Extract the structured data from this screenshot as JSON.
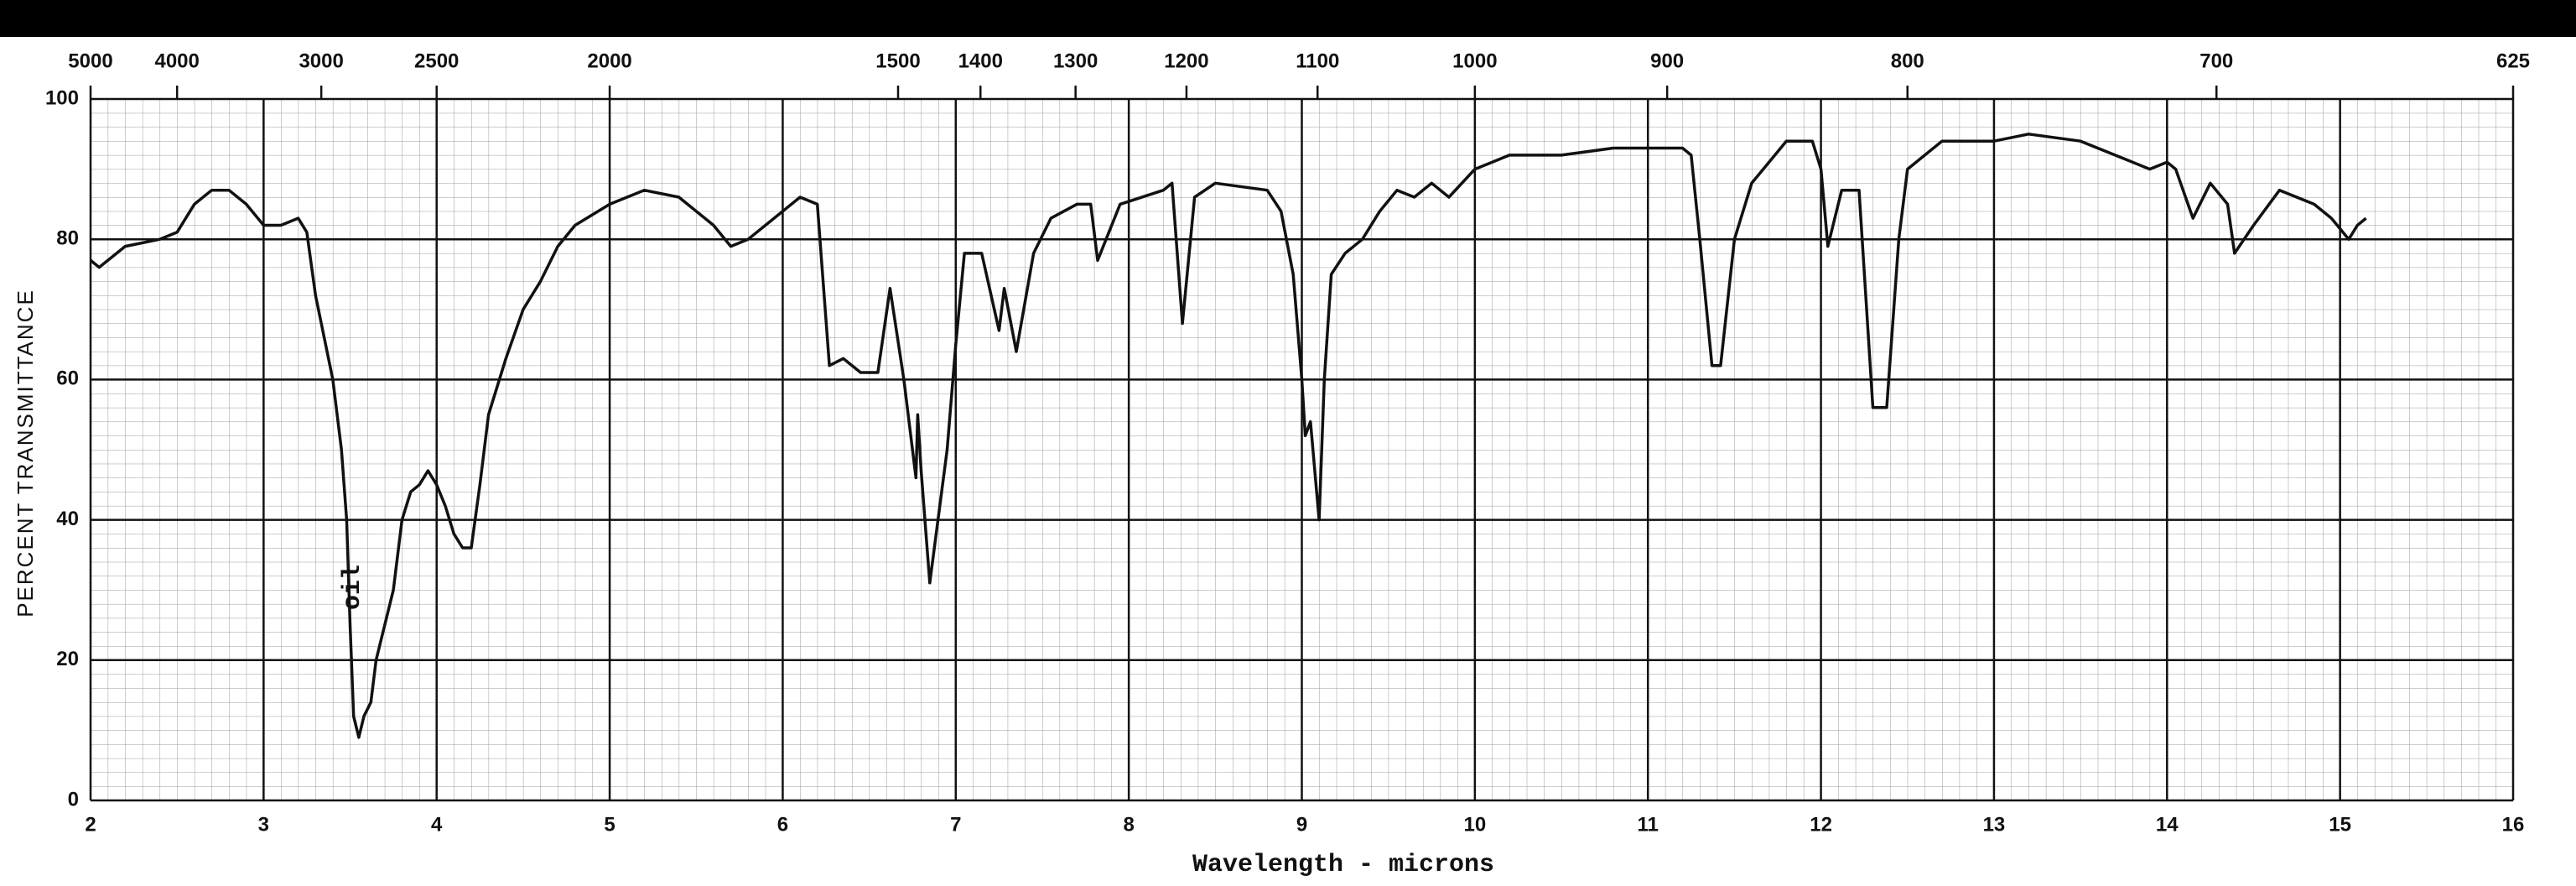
{
  "chart_data": {
    "type": "line",
    "ylabel": "PERCENT TRANSMITTANCE",
    "xlabel": "Wavelength - microns",
    "annotation": "oil",
    "xlim": [
      2,
      16
    ],
    "ylim": [
      0,
      100
    ],
    "xticks": [
      2,
      3,
      4,
      5,
      6,
      7,
      8,
      9,
      10,
      11,
      12,
      13,
      14,
      15,
      16
    ],
    "yticks": [
      0,
      20,
      40,
      60,
      80,
      100
    ],
    "x2ticks": [
      5000,
      4000,
      3000,
      2500,
      2000,
      1500,
      1400,
      1300,
      1200,
      1100,
      1000,
      900,
      800,
      700,
      625
    ],
    "grid": true,
    "series": [
      {
        "color": "#111111",
        "x": [
          2.0,
          2.05,
          2.2,
          2.4,
          2.5,
          2.6,
          2.7,
          2.8,
          2.9,
          3.0,
          3.1,
          3.2,
          3.25,
          3.3,
          3.4,
          3.45,
          3.48,
          3.5,
          3.52,
          3.55,
          3.58,
          3.62,
          3.65,
          3.7,
          3.75,
          3.8,
          3.85,
          3.9,
          3.95,
          4.0,
          4.05,
          4.1,
          4.15,
          4.2,
          4.25,
          4.3,
          4.4,
          4.5,
          4.6,
          4.7,
          4.8,
          5.0,
          5.2,
          5.4,
          5.6,
          5.7,
          5.8,
          6.0,
          6.1,
          6.2,
          6.27,
          6.35,
          6.45,
          6.55,
          6.62,
          6.7,
          6.77,
          6.78,
          6.8,
          6.85,
          6.95,
          7.0,
          7.05,
          7.15,
          7.25,
          7.28,
          7.35,
          7.45,
          7.55,
          7.7,
          7.78,
          7.82,
          7.95,
          8.2,
          8.25,
          8.31,
          8.38,
          8.5,
          8.8,
          8.88,
          8.95,
          9.0,
          9.02,
          9.05,
          9.1,
          9.13,
          9.17,
          9.25,
          9.35,
          9.45,
          9.55,
          9.65,
          9.75,
          9.85,
          10.0,
          10.2,
          10.5,
          10.8,
          11.2,
          11.25,
          11.3,
          11.37,
          11.42,
          11.5,
          11.6,
          11.7,
          11.8,
          11.95,
          12.0,
          12.04,
          12.12,
          12.22,
          12.3,
          12.38,
          12.45,
          12.5,
          12.7,
          13.0,
          13.2,
          13.5,
          13.7,
          13.9,
          14.0,
          14.05,
          14.15,
          14.25,
          14.35,
          14.39,
          14.5,
          14.65,
          14.85,
          14.95,
          15.05,
          15.1,
          15.15
        ],
        "values": [
          77,
          76,
          79,
          80,
          81,
          85,
          87,
          87,
          85,
          82,
          82,
          83,
          81,
          72,
          60,
          50,
          40,
          25,
          12,
          9,
          12,
          14,
          20,
          25,
          30,
          40,
          44,
          45,
          47,
          45,
          42,
          38,
          36,
          36,
          45,
          55,
          63,
          70,
          74,
          79,
          82,
          85,
          87,
          86,
          82,
          79,
          80,
          84,
          86,
          85,
          62,
          63,
          61,
          61,
          73,
          60,
          46,
          55,
          47,
          31,
          50,
          65,
          78,
          78,
          67,
          73,
          64,
          78,
          83,
          85,
          85,
          77,
          85,
          87,
          88,
          68,
          86,
          88,
          87,
          84,
          75,
          60,
          52,
          54,
          40,
          60,
          75,
          78,
          80,
          84,
          87,
          86,
          88,
          86,
          90,
          92,
          92,
          93,
          93,
          92,
          80,
          62,
          62,
          80,
          88,
          91,
          94,
          94,
          90,
          79,
          87,
          87,
          56,
          56,
          80,
          90,
          94,
          94,
          95,
          94,
          92,
          90,
          91,
          90,
          83,
          88,
          85,
          78,
          82,
          87,
          85,
          83,
          80,
          82,
          83
        ]
      }
    ]
  }
}
